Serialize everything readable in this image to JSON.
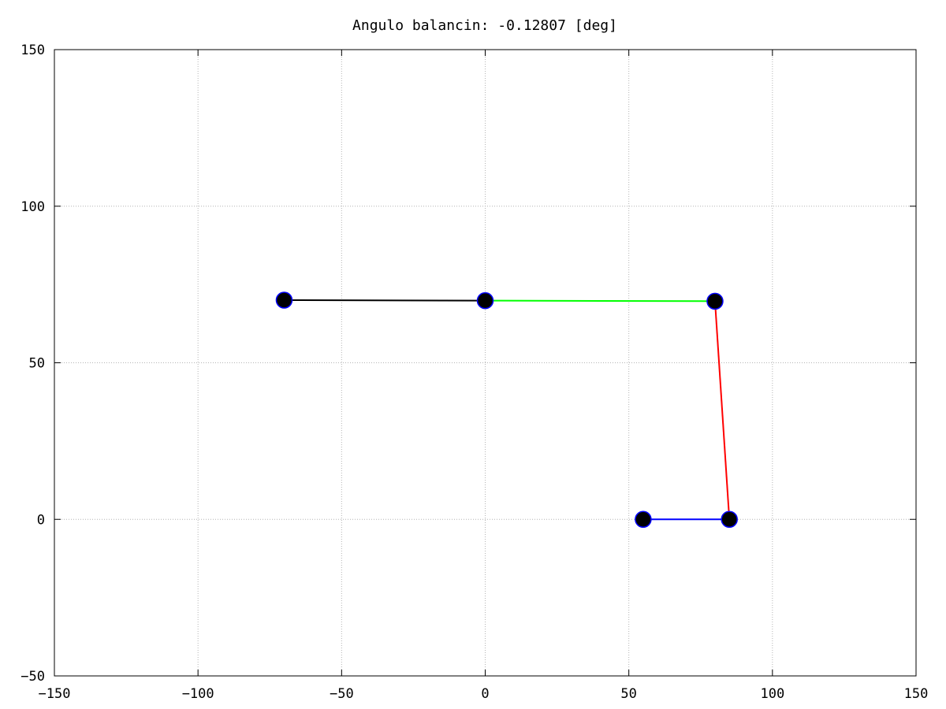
{
  "chart_data": {
    "type": "line",
    "title": "Angulo balancin:  -0.12807 [deg]",
    "xlabel": "",
    "ylabel": "",
    "xlim": [
      -150,
      150
    ],
    "ylim": [
      -50,
      150
    ],
    "grid": true,
    "xticks": [
      -150,
      -100,
      -50,
      0,
      50,
      100,
      150
    ],
    "yticks": [
      -50,
      0,
      50,
      100,
      150
    ],
    "xtick_labels": [
      "−150",
      "−100",
      "−50",
      "0",
      "50",
      "100",
      "150"
    ],
    "ytick_labels": [
      "−50",
      "0",
      "50",
      "100",
      "150"
    ],
    "segments": [
      {
        "color": "#000000",
        "points": [
          [
            -70,
            70
          ],
          [
            0,
            69.84
          ]
        ]
      },
      {
        "color": "#00ff00",
        "points": [
          [
            0,
            69.84
          ],
          [
            80,
            69.66
          ]
        ]
      },
      {
        "color": "#ff0000",
        "points": [
          [
            80,
            69.66
          ],
          [
            85,
            0
          ]
        ]
      },
      {
        "color": "#0000ff",
        "points": [
          [
            55,
            0
          ],
          [
            85,
            0
          ]
        ]
      }
    ],
    "joints": [
      [
        -70,
        70
      ],
      [
        0,
        69.84
      ],
      [
        80,
        69.66
      ],
      [
        55,
        0
      ],
      [
        85,
        0
      ]
    ],
    "joint_color": "#000000",
    "joint_edge_color": "#0000ff"
  }
}
